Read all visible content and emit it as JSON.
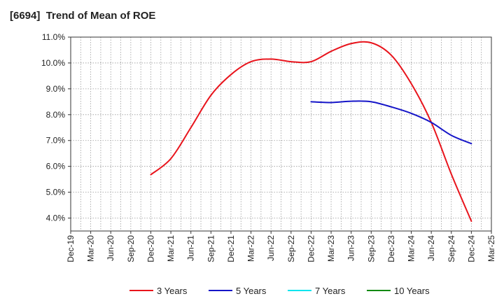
{
  "chart_data": {
    "type": "line",
    "title": "[6694]  Trend of Mean of ROE",
    "xlabel": "",
    "ylabel": "",
    "x_ticks": [
      "Dec-19",
      "Mar-20",
      "Jun-20",
      "Sep-20",
      "Dec-20",
      "Mar-21",
      "Jun-21",
      "Sep-21",
      "Dec-21",
      "Mar-22",
      "Jun-22",
      "Sep-22",
      "Dec-22",
      "Mar-23",
      "Jun-23",
      "Sep-23",
      "Dec-23",
      "Mar-24",
      "Jun-24",
      "Sep-24",
      "Dec-24",
      "Mar-25"
    ],
    "y_ticks": [
      "4.0%",
      "5.0%",
      "6.0%",
      "7.0%",
      "8.0%",
      "9.0%",
      "10.0%",
      "11.0%"
    ],
    "ylim": [
      3.5,
      11.0
    ],
    "y_unit": "%",
    "grid": true,
    "legend_position": "bottom",
    "series": [
      {
        "name": "3 Years",
        "color": "#e8141c",
        "x": [
          "Dec-20",
          "Mar-21",
          "Jun-21",
          "Sep-21",
          "Dec-21",
          "Mar-22",
          "Jun-22",
          "Sep-22",
          "Dec-22",
          "Mar-23",
          "Jun-23",
          "Sep-23",
          "Dec-23",
          "Mar-24",
          "Jun-24",
          "Sep-24",
          "Dec-24"
        ],
        "values": [
          5.68,
          6.3,
          7.5,
          8.75,
          9.55,
          10.05,
          10.15,
          10.05,
          10.05,
          10.45,
          10.75,
          10.78,
          10.3,
          9.2,
          7.7,
          5.7,
          3.88
        ]
      },
      {
        "name": "5 Years",
        "color": "#1515c8",
        "x": [
          "Dec-22",
          "Mar-23",
          "Jun-23",
          "Sep-23",
          "Dec-23",
          "Mar-24",
          "Jun-24",
          "Sep-24",
          "Dec-24"
        ],
        "values": [
          8.5,
          8.47,
          8.52,
          8.5,
          8.3,
          8.05,
          7.7,
          7.2,
          6.88
        ]
      },
      {
        "name": "7 Years",
        "color": "#00e5ee",
        "x": [],
        "values": []
      },
      {
        "name": "10 Years",
        "color": "#128a12",
        "x": [],
        "values": []
      }
    ]
  }
}
